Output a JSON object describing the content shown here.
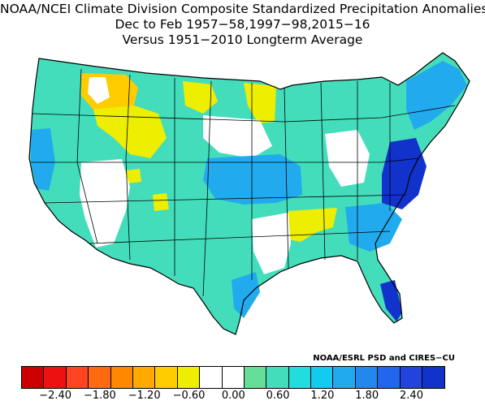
{
  "title": {
    "line1": "NOAA/NCEI Climate Division Composite Standardized Precipitation Anomalies",
    "line2": "Dec to Feb  1957−58,1997−98,2015−16",
    "line3": "Versus 1951−2010 Longterm Average"
  },
  "credit": "NOAA/ESRL PSD and CIRES−CU",
  "legend": {
    "colors": [
      "#cc0000",
      "#ee1111",
      "#ff4422",
      "#ff6a11",
      "#ff8800",
      "#ffaa00",
      "#ffcc00",
      "#eeee00",
      "#ffffff",
      "#ffffff",
      "#66dd99",
      "#44ddbb",
      "#22dddd",
      "#11ccee",
      "#22aaee",
      "#2288ee",
      "#2266ee",
      "#2244dd",
      "#1133cc"
    ],
    "tick_labels": [
      "−2.40",
      "−1.80",
      "−1.20",
      "−0.60",
      "0.00",
      "0.60",
      "1.20",
      "1.80",
      "2.40"
    ]
  },
  "regions": {
    "wet_strong": "#1133cc",
    "wet_mod": "#22aaee",
    "wet_light": "#44ddbb",
    "wet_faint": "#66dd99",
    "neutral": "#ffffff",
    "dry_light": "#eeee00",
    "dry_mod": "#ffcc00",
    "dry_strong": "#ffaa00"
  }
}
